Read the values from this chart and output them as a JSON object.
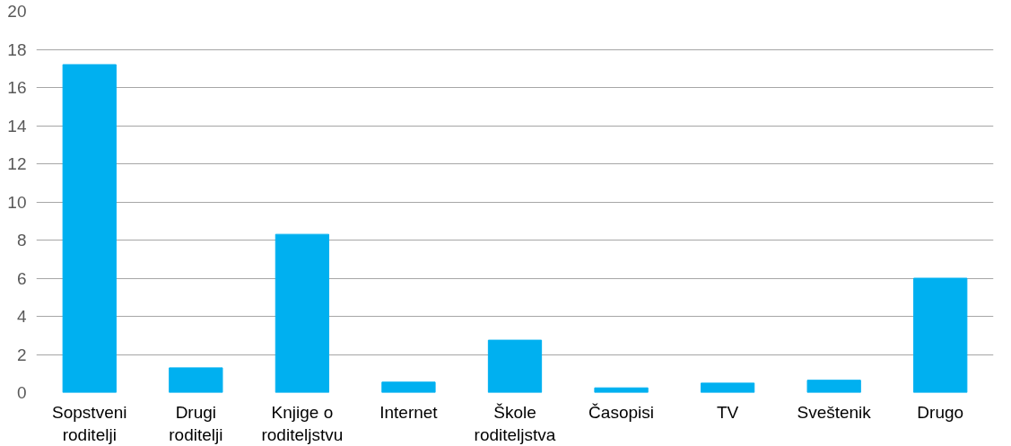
{
  "chart_data": {
    "type": "bar",
    "categories": [
      "Sopstveni roditelji",
      "Drugi roditelji",
      "Knjige o roditeljstvu",
      "Internet",
      "Škole roditeljstva",
      "Časopisi",
      "TV",
      "Sveštenik",
      "Drugo"
    ],
    "values": [
      17.2,
      1.3,
      8.3,
      0.55,
      2.75,
      0.25,
      0.5,
      0.65,
      6.0
    ],
    "color": "#00b0f0",
    "ylim": [
      0,
      20
    ],
    "yticks": [
      0,
      2,
      4,
      6,
      8,
      10,
      12,
      14,
      16,
      18,
      20
    ],
    "grid": "y"
  }
}
